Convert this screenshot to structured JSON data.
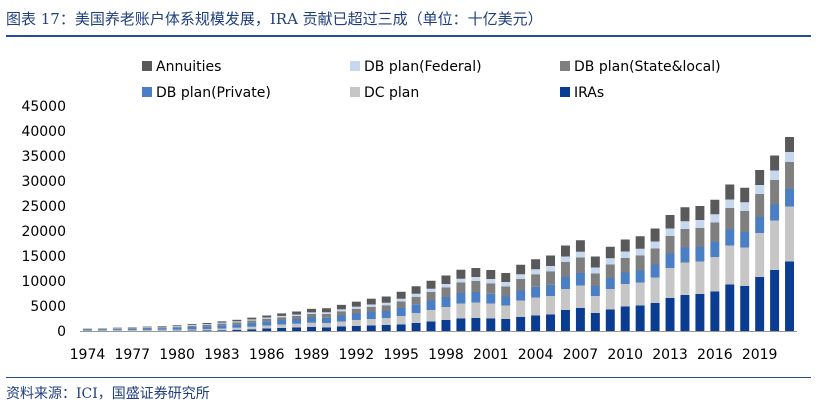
{
  "title": "图表 17：美国养老账户体系规模发展，IRA 贡献已超过三成（单位：十亿美元）",
  "source": "资料来源：ICI，国盛证券研究所",
  "chart_data": {
    "type": "bar",
    "stacked": true,
    "ylim": [
      0,
      45000
    ],
    "yticks": [
      0,
      5000,
      10000,
      15000,
      20000,
      25000,
      30000,
      35000,
      40000,
      45000
    ],
    "ytick_labels": [
      "0",
      "5000",
      "10000",
      "15000",
      "20000",
      "25000",
      "30000",
      "35000",
      "40000",
      "45000"
    ],
    "xtick_labels": [
      "1974",
      "1977",
      "1980",
      "1983",
      "1986",
      "1989",
      "1992",
      "1995",
      "1998",
      "2001",
      "2004",
      "2007",
      "2010",
      "2013",
      "2016",
      "2019"
    ],
    "categories": [
      "1974",
      "1975",
      "1976",
      "1977",
      "1978",
      "1979",
      "1980",
      "1981",
      "1982",
      "1983",
      "1984",
      "1985",
      "1986",
      "1987",
      "1988",
      "1989",
      "1990",
      "1991",
      "1992",
      "1993",
      "1994",
      "1995",
      "1996",
      "1997",
      "1998",
      "1999",
      "2000",
      "2001",
      "2002",
      "2003",
      "2004",
      "2005",
      "2006",
      "2007",
      "2008",
      "2009",
      "2010",
      "2011",
      "2012",
      "2013",
      "2014",
      "2015",
      "2016",
      "2017",
      "2018",
      "2019",
      "2020",
      "2021"
    ],
    "legend_order": [
      "Annuities",
      "DB plan(Federal)",
      "DB plan(State&local)",
      "DB plan(Private)",
      "DC plan",
      "IRAs"
    ],
    "series": [
      {
        "name": "IRAs",
        "color": "#0a3d91",
        "values": [
          5,
          10,
          20,
          30,
          40,
          50,
          60,
          80,
          100,
          150,
          250,
          350,
          500,
          600,
          700,
          800,
          700,
          900,
          1000,
          1100,
          1200,
          1300,
          1600,
          1900,
          2200,
          2500,
          2600,
          2500,
          2400,
          2800,
          3100,
          3300,
          4200,
          4600,
          3600,
          4300,
          4900,
          5100,
          5600,
          6600,
          7200,
          7400,
          7900,
          9300,
          9000,
          10800,
          12200,
          13900
        ]
      },
      {
        "name": "DC plan",
        "color": "#c6c6c6",
        "values": [
          100,
          110,
          130,
          150,
          170,
          190,
          200,
          230,
          280,
          350,
          400,
          500,
          600,
          700,
          750,
          850,
          900,
          1000,
          1200,
          1300,
          1400,
          1700,
          2000,
          2300,
          2600,
          3000,
          3100,
          3000,
          2700,
          3300,
          3600,
          3700,
          4200,
          4500,
          3400,
          4100,
          4500,
          4600,
          5100,
          6000,
          6500,
          6500,
          6900,
          7800,
          7700,
          8800,
          9900,
          11000
        ]
      },
      {
        "name": "DB plan(Private)",
        "color": "#4a7fc5",
        "values": [
          190,
          200,
          230,
          260,
          300,
          330,
          400,
          500,
          550,
          650,
          700,
          800,
          850,
          900,
          950,
          1050,
          1050,
          1200,
          1300,
          1400,
          1400,
          1600,
          1750,
          1900,
          2000,
          2100,
          2100,
          1950,
          1800,
          2000,
          2150,
          2250,
          2400,
          2500,
          2000,
          2200,
          2300,
          2400,
          2600,
          2900,
          3000,
          2900,
          3000,
          3200,
          3100,
          3200,
          3200,
          3500
        ]
      },
      {
        "name": "DB plan(State&local)",
        "color": "#7f7f7f",
        "values": [
          100,
          110,
          130,
          150,
          170,
          190,
          210,
          240,
          280,
          330,
          380,
          440,
          500,
          550,
          600,
          700,
          750,
          850,
          950,
          1050,
          1150,
          1300,
          1500,
          1700,
          1900,
          2100,
          2200,
          2100,
          2000,
          2300,
          2500,
          2700,
          3000,
          3100,
          2500,
          2700,
          2900,
          3000,
          3200,
          3500,
          3700,
          3800,
          3900,
          4300,
          4200,
          4600,
          4900,
          5400
        ]
      },
      {
        "name": "DB plan(Federal)",
        "color": "#c5d8ef",
        "values": [
          60,
          70,
          80,
          90,
          100,
          110,
          130,
          150,
          170,
          190,
          210,
          230,
          250,
          270,
          300,
          330,
          350,
          380,
          420,
          460,
          500,
          550,
          600,
          650,
          700,
          750,
          800,
          850,
          900,
          950,
          1000,
          1050,
          1100,
          1150,
          1200,
          1250,
          1300,
          1350,
          1400,
          1500,
          1550,
          1600,
          1650,
          1700,
          1750,
          1800,
          1900,
          2000
        ]
      },
      {
        "name": "Annuities",
        "color": "#595959",
        "values": [
          50,
          60,
          70,
          80,
          100,
          120,
          150,
          180,
          220,
          260,
          300,
          350,
          400,
          500,
          600,
          700,
          800,
          900,
          1000,
          1150,
          1250,
          1400,
          1500,
          1600,
          1700,
          1800,
          1800,
          1800,
          1800,
          1900,
          2000,
          2100,
          2200,
          2300,
          2200,
          2300,
          2400,
          2500,
          2600,
          2700,
          2800,
          2800,
          2900,
          3000,
          2900,
          3000,
          3000,
          3000
        ]
      }
    ]
  }
}
